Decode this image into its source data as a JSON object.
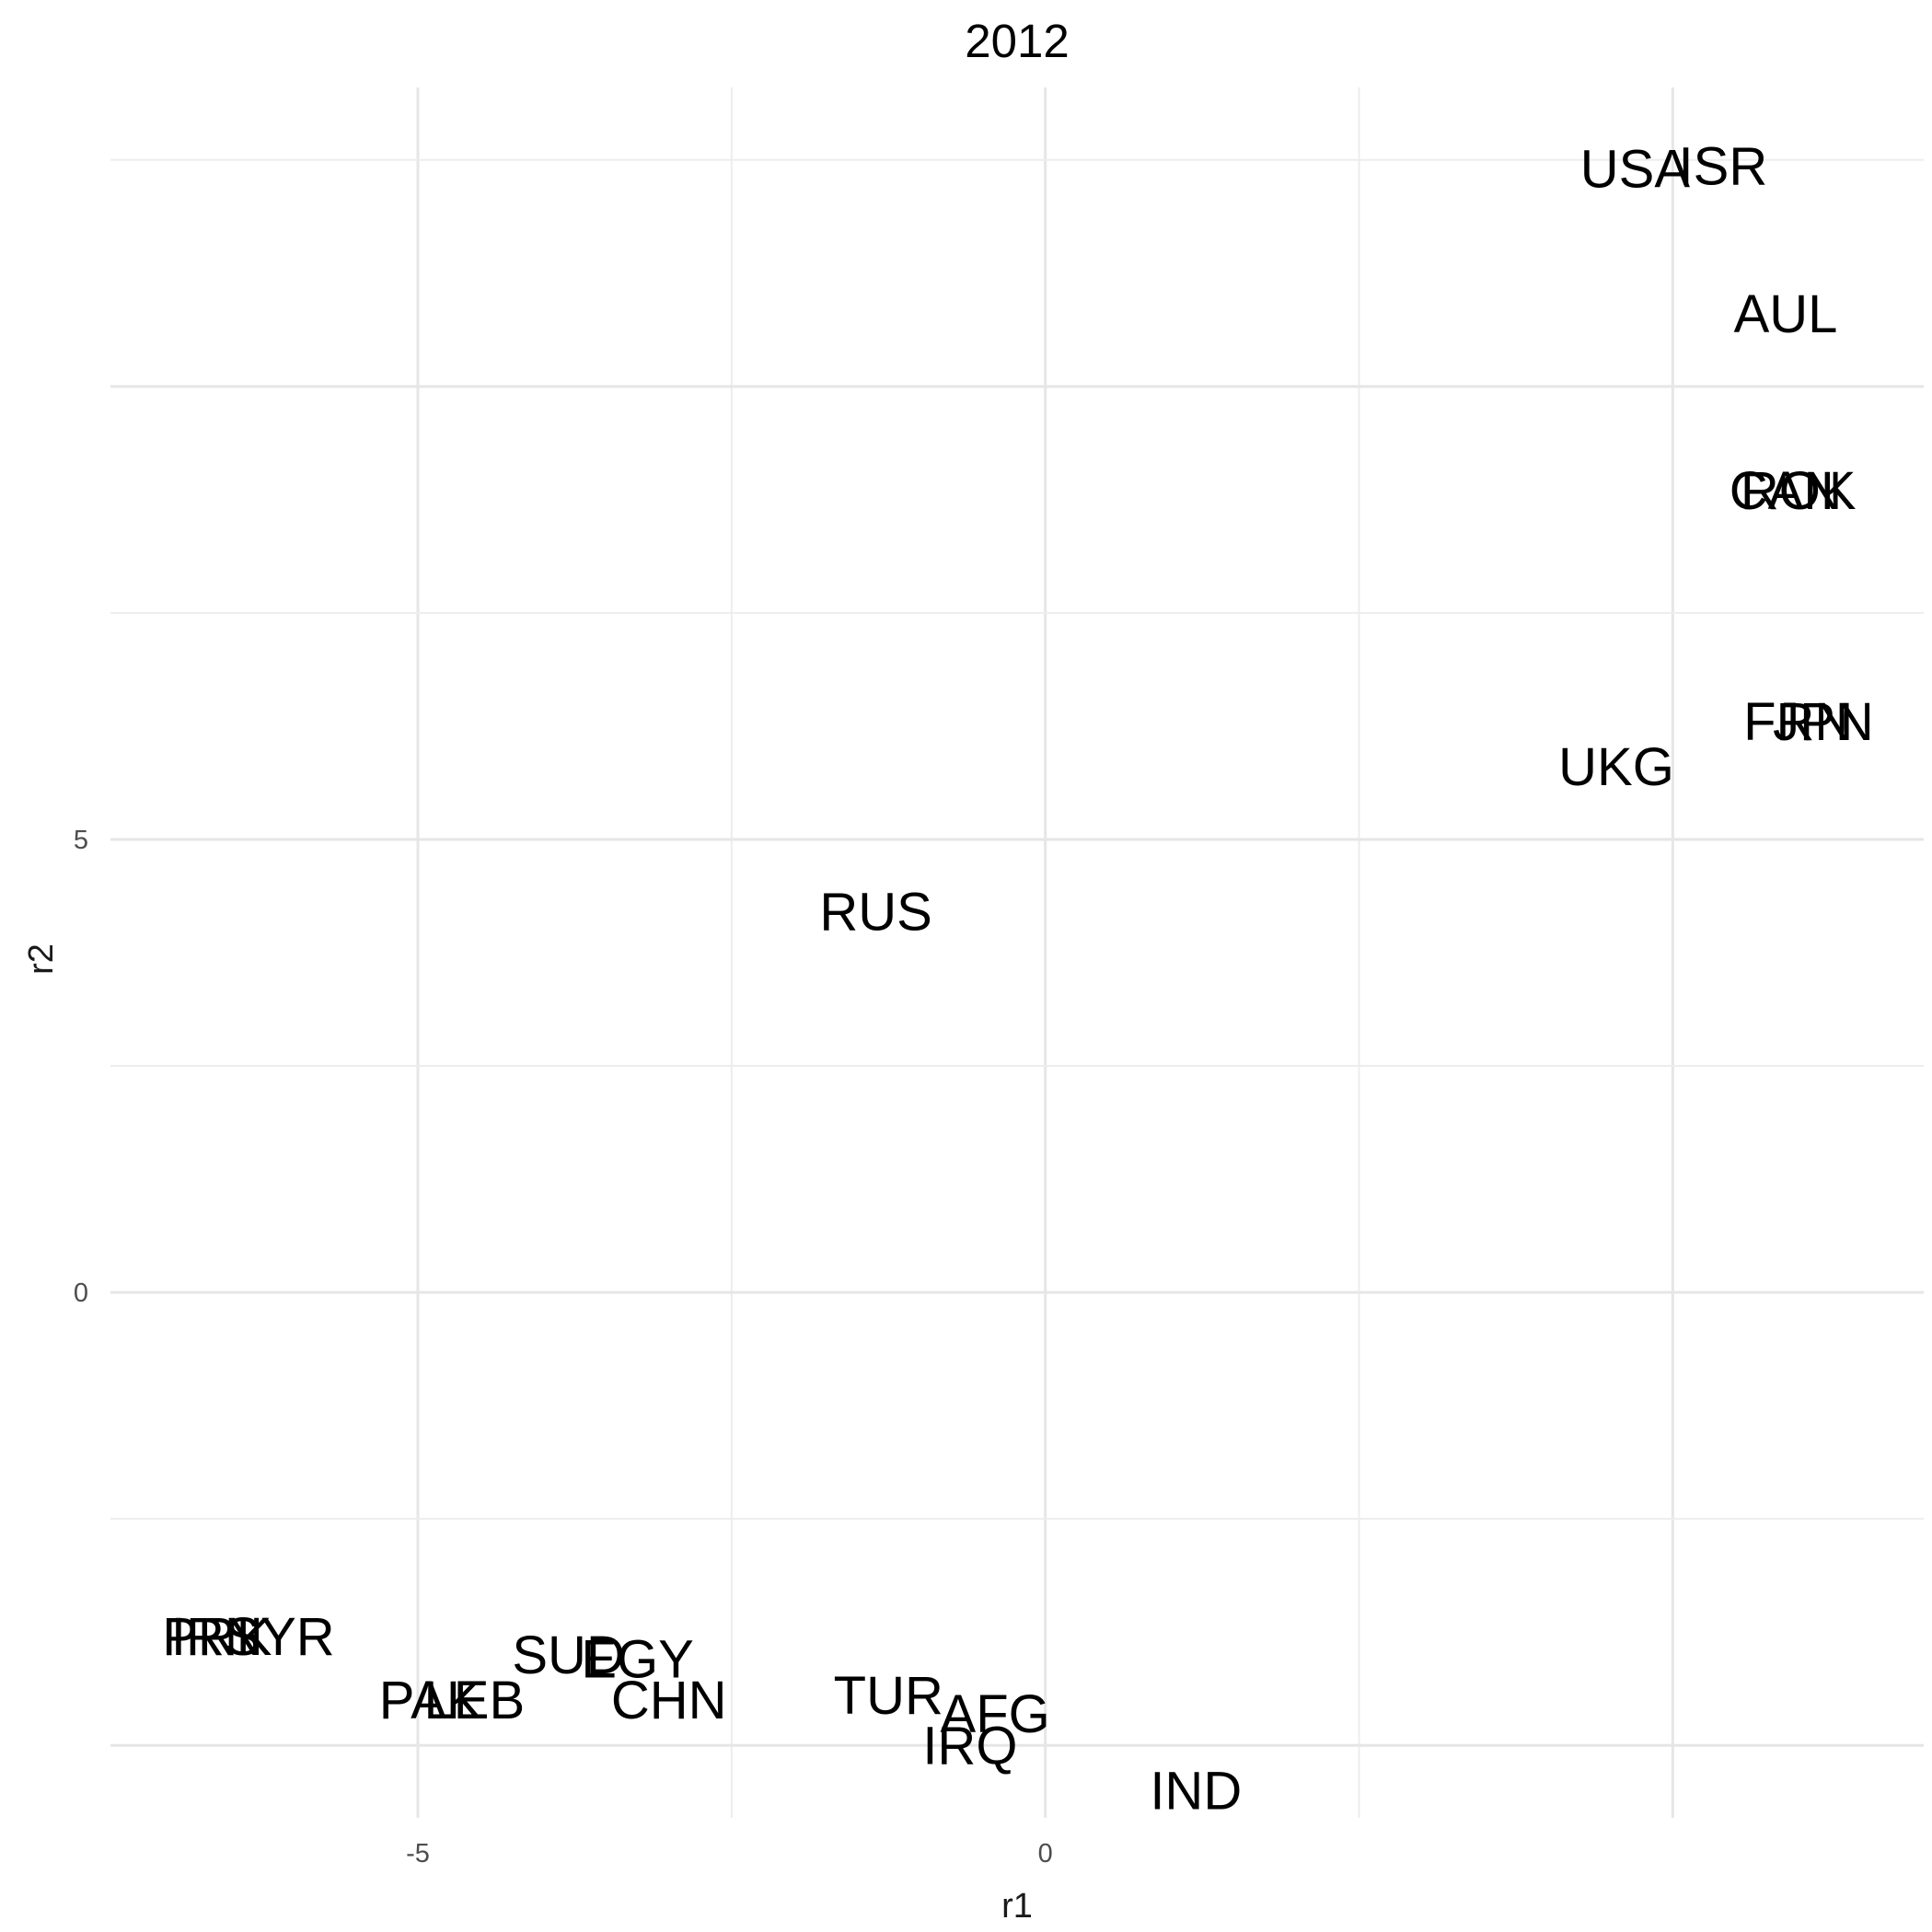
{
  "chart_data": {
    "type": "scatter",
    "title": "2012",
    "xlabel": "r1",
    "ylabel": "r2",
    "xlim": [
      -7.45,
      7.0
    ],
    "ylim": [
      -5.8,
      13.3
    ],
    "x_ticks": [
      -5,
      0
    ],
    "y_ticks": [
      0,
      5
    ],
    "x_tick_labels": [
      "-5",
      "0"
    ],
    "y_tick_labels": [
      "0",
      "5"
    ],
    "grid": true,
    "legend": "none",
    "points": [
      {
        "label": "USA",
        "x": 4.7,
        "y": 12.4
      },
      {
        "label": "ISR",
        "x": 5.4,
        "y": 12.43
      },
      {
        "label": "AUL",
        "x": 5.9,
        "y": 10.8
      },
      {
        "label": "CAN",
        "x": 5.9,
        "y": 8.85
      },
      {
        "label": "ROK",
        "x": 6.0,
        "y": 8.85
      },
      {
        "label": "FRN",
        "x": 6.0,
        "y": 6.3
      },
      {
        "label": "JPN",
        "x": 6.2,
        "y": 6.3
      },
      {
        "label": "UKG",
        "x": 4.55,
        "y": 5.8
      },
      {
        "label": "RUS",
        "x": -1.35,
        "y": 4.2
      },
      {
        "label": "PRK",
        "x": -6.6,
        "y": -3.8
      },
      {
        "label": "IRN",
        "x": -6.6,
        "y": -3.8
      },
      {
        "label": "SYR",
        "x": -6.1,
        "y": -3.8
      },
      {
        "label": "SUD",
        "x": -3.8,
        "y": -4.0
      },
      {
        "label": "EGY",
        "x": -3.25,
        "y": -4.05
      },
      {
        "label": "PAK",
        "x": -4.9,
        "y": -4.5
      },
      {
        "label": "LEB",
        "x": -4.55,
        "y": -4.5
      },
      {
        "label": "CHN",
        "x": -3.0,
        "y": -4.5
      },
      {
        "label": "TUR",
        "x": -1.25,
        "y": -4.45
      },
      {
        "label": "AFG",
        "x": -0.4,
        "y": -4.65
      },
      {
        "label": "IRQ",
        "x": -0.6,
        "y": -5.0
      },
      {
        "label": "IND",
        "x": 1.2,
        "y": -5.5
      }
    ]
  }
}
